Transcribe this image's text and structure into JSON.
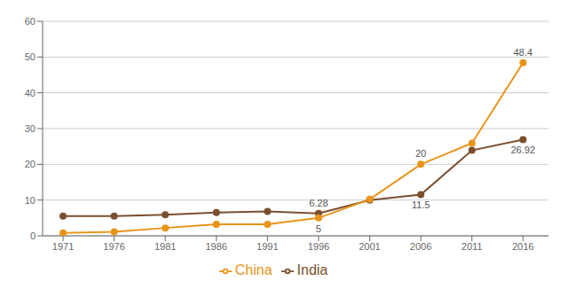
{
  "chart_data": {
    "type": "line",
    "x": [
      1971,
      1976,
      1981,
      1986,
      1991,
      1996,
      2001,
      2006,
      2011,
      2016
    ],
    "series": [
      {
        "name": "India",
        "color": "#7B4F2E",
        "marker": "circle",
        "values": [
          5.5,
          5.5,
          5.9,
          6.5,
          6.8,
          6.28,
          10.0,
          11.5,
          23.9,
          26.92
        ]
      },
      {
        "name": "China",
        "color": "#E8941A",
        "marker": "circle",
        "values": [
          0.8,
          1.1,
          2.2,
          3.2,
          3.2,
          5.0,
          10.2,
          20.0,
          25.9,
          48.4
        ]
      }
    ],
    "xlim": [
      1969,
      2018.5
    ],
    "xticks": [
      1971,
      1976,
      1981,
      1986,
      1991,
      1996,
      2001,
      2006,
      2011,
      2016
    ],
    "ylim": [
      0,
      60
    ],
    "yticks": [
      0,
      10,
      20,
      30,
      40,
      50,
      60
    ],
    "grid": true,
    "legend": "bottom",
    "annotations": [
      {
        "text": "6.28",
        "x": 1996,
        "y": 6.28
      },
      {
        "text": "11.5",
        "x": 2006,
        "y": 11.5
      },
      {
        "text": "26.92",
        "x": 2016,
        "y": 26.92
      },
      {
        "text": "5",
        "x": 1996,
        "y": 5.0
      },
      {
        "text": "20",
        "x": 2006,
        "y": 20.0
      },
      {
        "text": "48.4",
        "x": 2016,
        "y": 48.4
      }
    ]
  }
}
